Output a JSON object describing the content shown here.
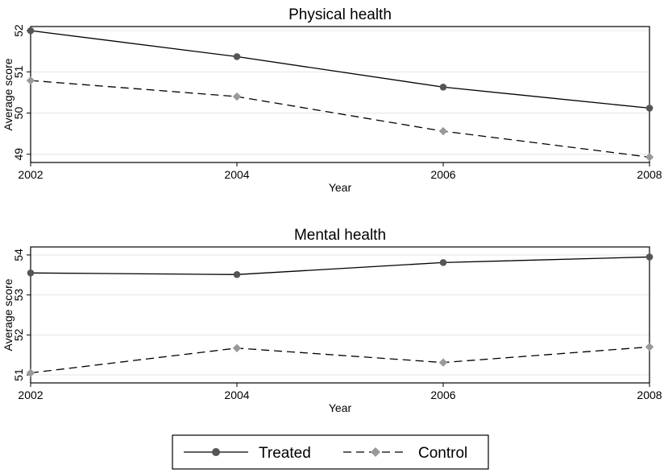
{
  "chart_data": [
    {
      "type": "line",
      "title": "Physical health",
      "xlabel": "Year",
      "ylabel": "Average score",
      "x": [
        2002,
        2004,
        2006,
        2008
      ],
      "xticks": [
        "2002",
        "2004",
        "2006",
        "2008"
      ],
      "yticks": [
        "49",
        "50",
        "51",
        "52"
      ],
      "ylim": [
        48.8,
        52.1
      ],
      "grid": true,
      "series": [
        {
          "name": "Treated",
          "values": [
            52.0,
            51.37,
            50.63,
            50.12
          ],
          "color": "#555555",
          "dash": "solid",
          "marker": "circle"
        },
        {
          "name": "Control",
          "values": [
            50.79,
            50.4,
            49.56,
            48.93
          ],
          "color": "#999999",
          "dash": "dashed",
          "marker": "diamond"
        }
      ]
    },
    {
      "type": "line",
      "title": "Mental health",
      "xlabel": "Year",
      "ylabel": "Average score",
      "x": [
        2002,
        2004,
        2006,
        2008
      ],
      "xticks": [
        "2002",
        "2004",
        "2006",
        "2008"
      ],
      "yticks": [
        "51",
        "52",
        "53",
        "54"
      ],
      "ylim": [
        50.8,
        54.2
      ],
      "grid": true,
      "series": [
        {
          "name": "Treated",
          "values": [
            53.55,
            53.51,
            53.81,
            53.95
          ],
          "color": "#555555",
          "dash": "solid",
          "marker": "circle"
        },
        {
          "name": "Control",
          "values": [
            51.05,
            51.67,
            51.31,
            51.7
          ],
          "color": "#999999",
          "dash": "dashed",
          "marker": "diamond"
        }
      ]
    }
  ],
  "legend": {
    "position": "bottom-center",
    "items": [
      {
        "label": "Treated",
        "color": "#555555",
        "dash": "solid",
        "marker": "circle"
      },
      {
        "label": "Control",
        "color": "#999999",
        "dash": "dashed",
        "marker": "diamond"
      }
    ]
  }
}
